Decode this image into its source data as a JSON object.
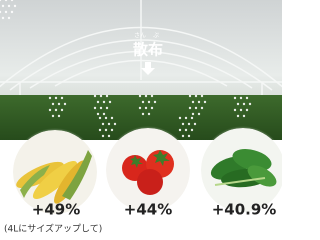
{
  "header": {
    "ruby": [
      "さん",
      "ぷ"
    ],
    "label": "散布"
  },
  "items": [
    {
      "value": "+49%"
    },
    {
      "value": "+44%"
    },
    {
      "value": "+40.9%"
    }
  ],
  "note": "(4Lにサイズアップして)"
}
